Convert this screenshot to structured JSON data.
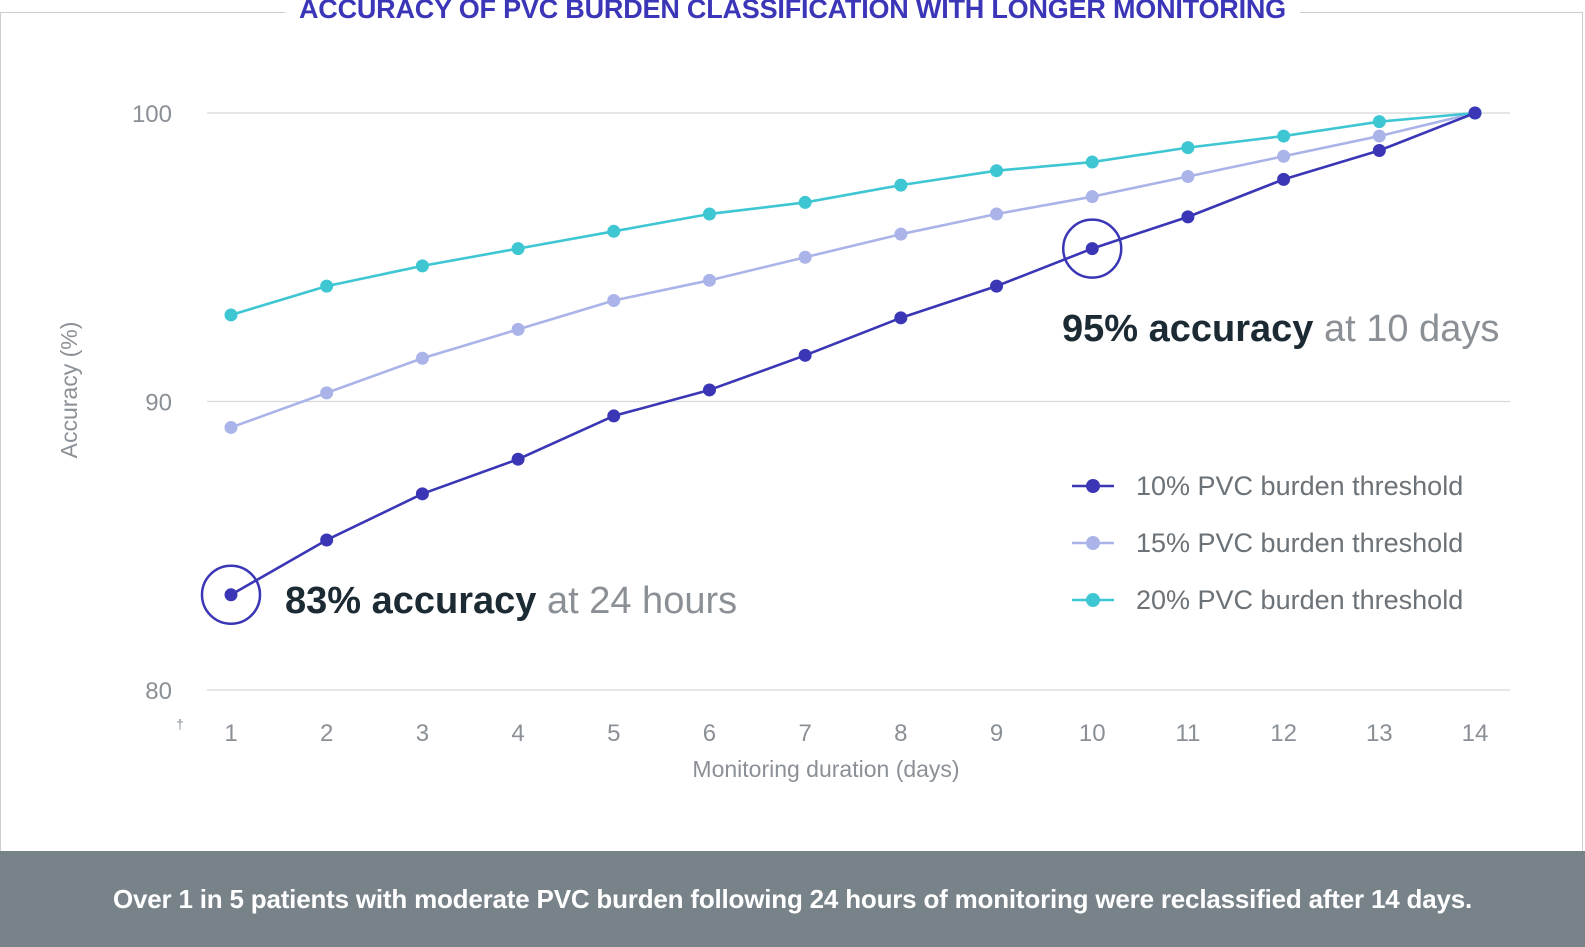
{
  "header": {
    "title": "ACCURACY OF PVC BURDEN CLASSIFICATION WITH LONGER MONITORING"
  },
  "footer": {
    "text": "Over 1 in 5 patients with moderate PVC burden following 24 hours of monitoring were reclassified after 14 days."
  },
  "colors": {
    "s10": "#3a36b5",
    "s15": "#aab4e8",
    "s20": "#3ec6d3",
    "grid": "#d5d8db",
    "title": "#3b35b8",
    "footer_bg": "#788289"
  },
  "chart_data": {
    "type": "line",
    "title": "ACCURACY OF PVC BURDEN CLASSIFICATION WITH LONGER MONITORING",
    "xlabel": "Monitoring duration (days)",
    "ylabel": "Accuracy (%)",
    "x": [
      1,
      2,
      3,
      4,
      5,
      6,
      7,
      8,
      9,
      10,
      11,
      12,
      13,
      14
    ],
    "ylim": [
      80,
      100
    ],
    "yticks": [
      80,
      90,
      100
    ],
    "axis_break_marker": "†",
    "grid": true,
    "legend_position": "right",
    "series": [
      {
        "name": "10% PVC burden threshold",
        "color": "#3a36b5",
        "values": [
          83.3,
          85.2,
          86.8,
          88.0,
          89.5,
          90.4,
          91.6,
          92.9,
          94.0,
          95.3,
          96.4,
          97.7,
          98.7,
          100.0
        ]
      },
      {
        "name": "15% PVC burden threshold",
        "color": "#aab4e8",
        "values": [
          89.1,
          90.3,
          91.5,
          92.5,
          93.5,
          94.2,
          95.0,
          95.8,
          96.5,
          97.1,
          97.8,
          98.5,
          99.2,
          100.0
        ]
      },
      {
        "name": "20% PVC burden threshold",
        "color": "#3ec6d3",
        "values": [
          93.0,
          94.0,
          94.7,
          95.3,
          95.9,
          96.5,
          96.9,
          97.5,
          98.0,
          98.3,
          98.8,
          99.2,
          99.7,
          100.0
        ]
      }
    ],
    "annotations": [
      {
        "series": 0,
        "x": 1,
        "bold": "83% accuracy",
        "rest": " at 24 hours"
      },
      {
        "series": 0,
        "x": 10,
        "bold": "95% accuracy",
        "rest": " at 10 days"
      }
    ]
  }
}
